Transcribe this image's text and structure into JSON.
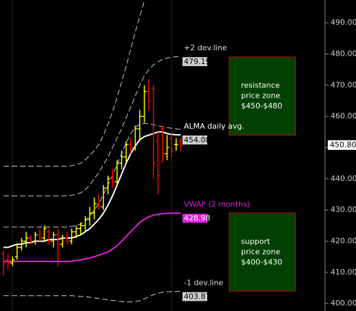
{
  "chart_data": {
    "type": "ohlc",
    "ylim": [
      397.6,
      497.3
    ],
    "yticks": [
      {
        "value": 400,
        "label": "400.00"
      },
      {
        "value": 410,
        "label": "410.00"
      },
      {
        "value": 420,
        "label": "420.00"
      },
      {
        "value": 430,
        "label": "430.00"
      },
      {
        "value": 440,
        "label": "440.00"
      },
      {
        "value": 450,
        "label": "450.00"
      },
      {
        "value": 460,
        "label": "460.00"
      },
      {
        "value": 470,
        "label": "470.00"
      },
      {
        "value": 480,
        "label": "480.00"
      },
      {
        "value": 490,
        "label": "490.00"
      }
    ],
    "up_color": "#ffff00",
    "down_color": "#ff0000",
    "open": [
      416,
      414,
      413,
      415,
      418,
      420,
      421,
      420,
      422,
      421,
      423,
      420,
      422,
      419,
      421,
      420,
      423,
      424,
      425,
      427,
      429,
      432,
      431,
      437,
      440,
      439,
      445,
      447,
      451,
      450,
      456,
      460,
      468,
      469,
      452,
      456,
      448,
      453,
      451,
      452
    ],
    "high": [
      417,
      416,
      415,
      419,
      421,
      423,
      422,
      423,
      424,
      425,
      424,
      423,
      424,
      422,
      423,
      424,
      425,
      426,
      428,
      431,
      434,
      435,
      438,
      441,
      443,
      446,
      449,
      452,
      453,
      457,
      462,
      470,
      472,
      470,
      455,
      457,
      454,
      455,
      453,
      453
    ],
    "low": [
      409,
      411,
      412,
      414,
      417,
      418,
      419,
      419,
      420,
      420,
      419,
      418,
      412,
      418,
      419,
      419,
      421,
      422,
      423,
      425,
      427,
      430,
      430,
      435,
      437,
      438,
      443,
      445,
      448,
      449,
      452,
      458,
      462,
      440,
      435,
      445,
      446,
      447,
      449,
      449
    ],
    "close": [
      413,
      413,
      414,
      418,
      420,
      421,
      420,
      422,
      421,
      424,
      420,
      422,
      419,
      421,
      420,
      423,
      424,
      425,
      427,
      429,
      432,
      431,
      437,
      440,
      439,
      445,
      447,
      451,
      450,
      456,
      460,
      468,
      465,
      445,
      441,
      448,
      450,
      449,
      451,
      450.8
    ],
    "current_price": {
      "value": 450.8,
      "label": "450.80"
    },
    "series": [
      {
        "color": "#cccccc",
        "dashed": true,
        "values": [
          444,
          444,
          444,
          444,
          444,
          444,
          444,
          444,
          444,
          444,
          444,
          444,
          444,
          444,
          444,
          444.2,
          444.5,
          445,
          446,
          447.5,
          449,
          451,
          454,
          457.5,
          461.5,
          466,
          471,
          476,
          481.5,
          487,
          492,
          497,
          null,
          null,
          null,
          null,
          null,
          null,
          null,
          null
        ]
      },
      {
        "name": "+2 dev.line",
        "color": "#cccccc",
        "dashed": true,
        "values": [
          434.5,
          434.5,
          434.5,
          434.5,
          434.5,
          434.5,
          434.5,
          434.5,
          434.5,
          434.5,
          434.5,
          434.5,
          434.5,
          434.5,
          434.5,
          434.7,
          435,
          435.5,
          436.5,
          438,
          440,
          442,
          444.5,
          447,
          450,
          453,
          456,
          459.5,
          463,
          466.5,
          470,
          473,
          475,
          476.5,
          477.5,
          478.2,
          478.7,
          479,
          479.1,
          479.19
        ]
      },
      {
        "color": "#cccccc",
        "dashed": true,
        "values": [
          424.5,
          424.5,
          424.5,
          424.5,
          424.5,
          424.5,
          424.5,
          424.5,
          424.5,
          424.5,
          424.5,
          424.5,
          424.5,
          424.5,
          424.5,
          424.7,
          425,
          425.5,
          426.5,
          428,
          430,
          432,
          435,
          438,
          441,
          444.5,
          448,
          451.5,
          454.5,
          456.5,
          457.5,
          457.8,
          457.6,
          457.3,
          457,
          456.7,
          456.4,
          456.2,
          456,
          455.8
        ]
      },
      {
        "name": "ALMA daily avg.",
        "color": "#ffffff",
        "dashed": false,
        "values": [
          418,
          418,
          418.5,
          419,
          419,
          419.5,
          419.5,
          420,
          420,
          420,
          420.5,
          420.5,
          420.5,
          421,
          421,
          421,
          421.5,
          422,
          423,
          424,
          425.5,
          427,
          429,
          431.5,
          434.5,
          438,
          441.5,
          445,
          448,
          450.5,
          452.5,
          453.5,
          454,
          454.5,
          455,
          455,
          454.5,
          454.2,
          454.1,
          454.08
        ]
      },
      {
        "name": "VWAP (2 months)",
        "color": "#e020e0",
        "dashed": false,
        "values": [
          413.5,
          413.5,
          413.5,
          413.5,
          413.5,
          413.5,
          413.5,
          413.5,
          413.5,
          413.5,
          413.5,
          413.5,
          413.5,
          413.5,
          413.5,
          413.6,
          413.8,
          414,
          414.3,
          414.6,
          415,
          415.5,
          416,
          416.5,
          417.5,
          418.5,
          420,
          421.5,
          423,
          424.5,
          426,
          427,
          427.8,
          428.3,
          428.6,
          428.8,
          428.9,
          428.95,
          428.97,
          428.98
        ]
      },
      {
        "name": "-1 dev.line",
        "color": "#cccccc",
        "dashed": true,
        "values": [
          402.5,
          402.5,
          402.5,
          402.5,
          402.5,
          402.5,
          402.5,
          402.5,
          402.5,
          402.5,
          402.5,
          402.5,
          402.5,
          402.5,
          402.5,
          402.5,
          402.4,
          402.3,
          402.2,
          402,
          401.8,
          401.6,
          401.4,
          401.2,
          401,
          400.8,
          400.6,
          400.5,
          400.5,
          400.6,
          400.9,
          401.5,
          402.2,
          402.8,
          403.3,
          403.6,
          403.75,
          403.82,
          403.85,
          403.87
        ]
      }
    ],
    "zones": [
      {
        "lines": [
          "resistance",
          "price zone",
          "$450-$480"
        ],
        "range": [
          454,
          479
        ]
      },
      {
        "lines": [
          "support",
          "price zone",
          "$400-$430"
        ],
        "range": [
          404,
          429
        ]
      }
    ]
  }
}
